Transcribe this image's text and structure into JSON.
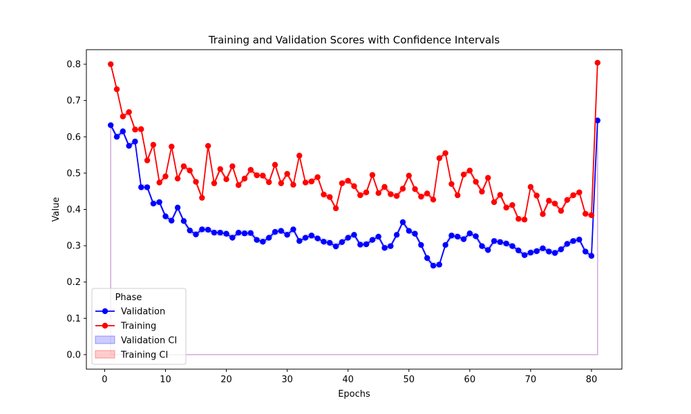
{
  "chart_data": {
    "type": "line",
    "title": "Training and Validation Scores with Confidence Intervals",
    "xlabel": "Epochs",
    "ylabel": "Value",
    "xlim": [
      -3,
      85
    ],
    "ylim": [
      -0.04,
      0.84
    ],
    "xticks": [
      0,
      10,
      20,
      30,
      40,
      50,
      60,
      70,
      80
    ],
    "yticks": [
      0.0,
      0.1,
      0.2,
      0.3,
      0.4,
      0.5,
      0.6,
      0.7,
      0.8
    ],
    "grid": false,
    "legend": {
      "title": "Phase",
      "placement": "lower-left",
      "entries": [
        "Validation",
        "Training",
        "Validation CI",
        "Training CI"
      ]
    },
    "colors": {
      "validation": "#0000ff",
      "training": "#ff0000",
      "validation_ci": "#0000ff",
      "training_ci": "#ff0000"
    },
    "x": [
      1,
      2,
      3,
      4,
      5,
      6,
      7,
      8,
      9,
      10,
      11,
      12,
      13,
      14,
      15,
      16,
      17,
      18,
      19,
      20,
      21,
      22,
      23,
      24,
      25,
      26,
      27,
      28,
      29,
      30,
      31,
      32,
      33,
      34,
      35,
      36,
      37,
      38,
      39,
      40,
      41,
      42,
      43,
      44,
      45,
      46,
      47,
      48,
      49,
      50,
      51,
      52,
      53,
      54,
      55,
      56,
      57,
      58,
      59,
      60,
      61,
      62,
      63,
      64,
      65,
      66,
      67,
      68,
      69,
      70,
      71,
      72,
      73,
      74,
      75,
      76,
      77,
      78,
      79,
      80,
      81
    ],
    "series": [
      {
        "name": "Validation",
        "values": [
          0.632,
          0.6,
          0.615,
          0.575,
          0.587,
          0.461,
          0.461,
          0.416,
          0.42,
          0.381,
          0.369,
          0.405,
          0.368,
          0.342,
          0.331,
          0.345,
          0.344,
          0.336,
          0.336,
          0.333,
          0.322,
          0.336,
          0.334,
          0.335,
          0.316,
          0.311,
          0.322,
          0.338,
          0.341,
          0.33,
          0.345,
          0.313,
          0.322,
          0.328,
          0.32,
          0.311,
          0.308,
          0.298,
          0.31,
          0.322,
          0.33,
          0.303,
          0.304,
          0.316,
          0.325,
          0.294,
          0.299,
          0.33,
          0.365,
          0.341,
          0.333,
          0.302,
          0.266,
          0.245,
          0.248,
          0.302,
          0.328,
          0.325,
          0.318,
          0.334,
          0.326,
          0.299,
          0.288,
          0.313,
          0.31,
          0.306,
          0.299,
          0.287,
          0.274,
          0.281,
          0.285,
          0.293,
          0.284,
          0.28,
          0.29,
          0.305,
          0.313,
          0.317,
          0.284,
          0.272,
          0.645
        ],
        "ci_halfwidth": 0.008
      },
      {
        "name": "Training",
        "values": [
          0.8,
          0.731,
          0.656,
          0.668,
          0.62,
          0.621,
          0.535,
          0.578,
          0.474,
          0.491,
          0.573,
          0.485,
          0.519,
          0.507,
          0.476,
          0.432,
          0.575,
          0.472,
          0.511,
          0.483,
          0.519,
          0.467,
          0.485,
          0.509,
          0.494,
          0.493,
          0.475,
          0.523,
          0.472,
          0.498,
          0.468,
          0.548,
          0.474,
          0.477,
          0.489,
          0.441,
          0.434,
          0.403,
          0.472,
          0.479,
          0.464,
          0.439,
          0.447,
          0.495,
          0.445,
          0.462,
          0.442,
          0.437,
          0.457,
          0.493,
          0.456,
          0.435,
          0.444,
          0.427,
          0.541,
          0.555,
          0.47,
          0.439,
          0.496,
          0.507,
          0.476,
          0.449,
          0.487,
          0.42,
          0.44,
          0.405,
          0.412,
          0.374,
          0.372,
          0.462,
          0.438,
          0.387,
          0.424,
          0.416,
          0.396,
          0.426,
          0.439,
          0.447,
          0.388,
          0.384,
          0.804
        ],
        "ci_halfwidth": 0.008
      }
    ]
  }
}
